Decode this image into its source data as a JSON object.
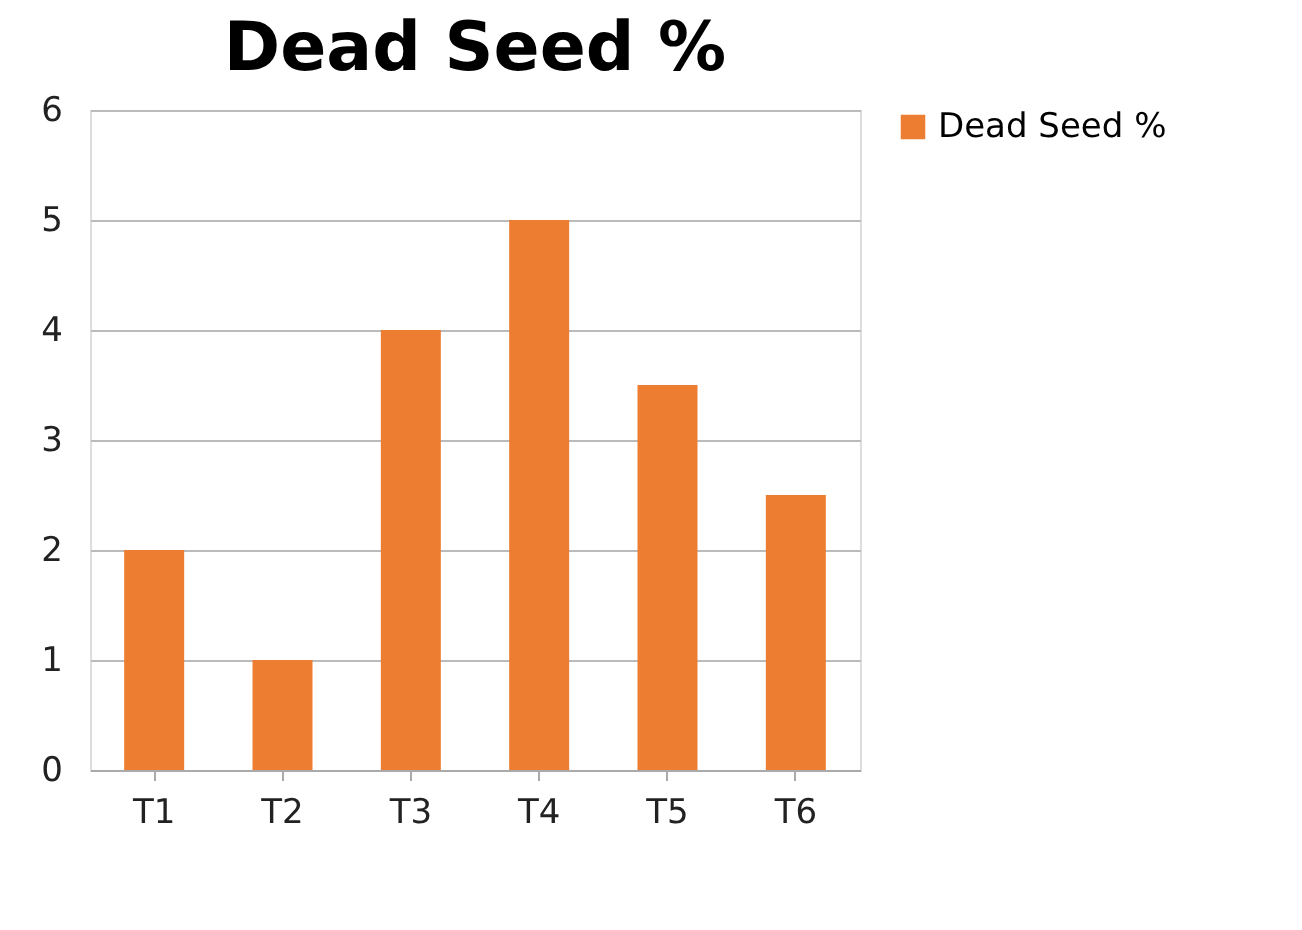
{
  "chart_data": {
    "type": "bar",
    "title": "Dead Seed %",
    "categories": [
      "T1",
      "T2",
      "T3",
      "T4",
      "T5",
      "T6"
    ],
    "series": [
      {
        "name": "Dead Seed %",
        "color": "#ed7d31",
        "values": [
          2,
          1,
          4,
          5,
          3.5,
          2.5
        ]
      }
    ],
    "ylim": [
      0,
      6
    ],
    "yticks": [
      0,
      1,
      2,
      3,
      4,
      5,
      6
    ],
    "grid": "y",
    "legend": "right"
  }
}
